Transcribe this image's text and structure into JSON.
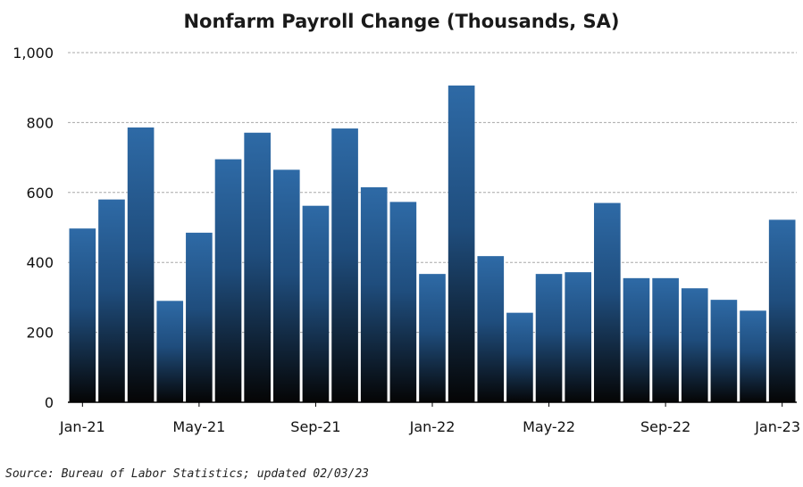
{
  "chart_data": {
    "type": "bar",
    "title": "Nonfarm Payroll Change (Thousands, SA)",
    "xlabel": "",
    "ylabel": "",
    "ylim": [
      0,
      1000
    ],
    "yticks": [
      0,
      200,
      400,
      600,
      800,
      1000
    ],
    "ytick_labels": [
      "0",
      "200",
      "400",
      "600",
      "800",
      "1,000"
    ],
    "grid": true,
    "legend": "none",
    "categories": [
      "Jan-21",
      "Feb-21",
      "Mar-21",
      "Apr-21",
      "May-21",
      "Jun-21",
      "Jul-21",
      "Aug-21",
      "Sep-21",
      "Oct-21",
      "Nov-21",
      "Dec-21",
      "Jan-22",
      "Feb-22",
      "Mar-22",
      "Apr-22",
      "May-22",
      "Jun-22",
      "Jul-22",
      "Aug-22",
      "Sep-22",
      "Oct-22",
      "Nov-22",
      "Dec-22",
      "Jan-23"
    ],
    "xtick_labels": [
      "Jan-21",
      "May-21",
      "Sep-21",
      "Jan-22",
      "May-22",
      "Sep-22",
      "Jan-23"
    ],
    "xtick_indices": [
      0,
      4,
      8,
      12,
      16,
      20,
      24
    ],
    "values": [
      497,
      580,
      786,
      290,
      485,
      695,
      771,
      665,
      562,
      783,
      615,
      573,
      367,
      906,
      418,
      256,
      367,
      372,
      570,
      355,
      355,
      326,
      293,
      262,
      522
    ],
    "colors": {
      "bar_top": "#2e6aa6",
      "bar_bottom": "#050505",
      "gridline": "#a8a8a8",
      "axis": "#000000"
    }
  },
  "source_note": "Source: Bureau of Labor Statistics; updated 02/03/23"
}
